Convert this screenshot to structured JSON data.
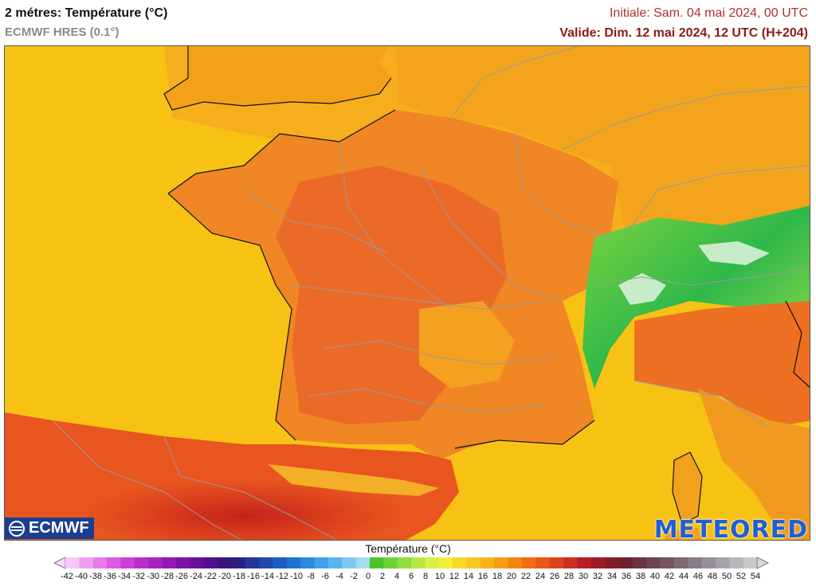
{
  "header": {
    "title": "2 métres: Température (°C)",
    "model": "ECMWF HRES (0.1°)",
    "initial": "Initiale: Sam. 04 mai 2024, 00 UTC",
    "valid": "Valide: Dim. 12 mai 2024, 12 UTC (H+204)"
  },
  "logos": {
    "ecmwf": "ECMWF",
    "meteored": "METEORED"
  },
  "legend": {
    "title": "Température (°C)",
    "ticks": [
      "-42",
      "-40",
      "-38",
      "-36",
      "-34",
      "-32",
      "-30",
      "-28",
      "-26",
      "-24",
      "-22",
      "-20",
      "-18",
      "-16",
      "-14",
      "-12",
      "-10",
      "-8",
      "-6",
      "-4",
      "-2",
      "0",
      "2",
      "4",
      "6",
      "8",
      "10",
      "12",
      "14",
      "16",
      "18",
      "20",
      "22",
      "24",
      "26",
      "28",
      "30",
      "32",
      "34",
      "36",
      "38",
      "40",
      "42",
      "44",
      "46",
      "48",
      "50",
      "52",
      "54"
    ],
    "colors": [
      "#f7c8f7",
      "#f09ff0",
      "#e77be8",
      "#dc5be0",
      "#cf3ed6",
      "#bc2ccd",
      "#a722c4",
      "#9019b8",
      "#7a12ab",
      "#65109c",
      "#520e8c",
      "#3a167a",
      "#2b1f84",
      "#25349a",
      "#2048ae",
      "#1c5dc2",
      "#1f74d2",
      "#2b8ade",
      "#3fa1e8",
      "#5ab5ee",
      "#7ec8f1",
      "#a6dbf0",
      "#4bc42c",
      "#6bd33a",
      "#8fde3e",
      "#b4e842",
      "#d7ef46",
      "#f2ee38",
      "#f7d92a",
      "#f8c720",
      "#f9b31a",
      "#f79c14",
      "#f5850f",
      "#f26c10",
      "#ea5716",
      "#df421c",
      "#ce2f20",
      "#b81f23",
      "#9e1a24",
      "#851a28",
      "#6e2030",
      "#6b3340",
      "#6e4450",
      "#755561",
      "#7e6873",
      "#8a7c86",
      "#978f98",
      "#a5a3aa",
      "#b7b6bb",
      "#c8c8cc"
    ],
    "min_color": "#fbdcfb",
    "max_color": "#d8d8d8"
  },
  "map": {
    "sea_color": "#f7c214",
    "warm_color": "#f38c1c",
    "hot_color": "#ee6a24",
    "hottest_color": "#d33a1a",
    "alps_color": "#52c43c",
    "border_color": "#9a9a9a"
  }
}
